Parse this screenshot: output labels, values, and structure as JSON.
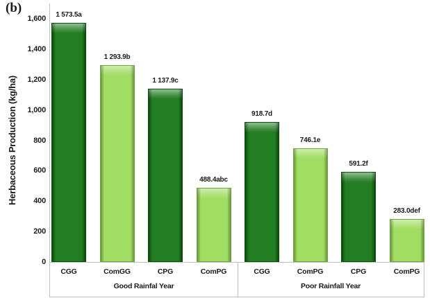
{
  "figure_label": "(b)",
  "chart_data": {
    "type": "bar",
    "title": "",
    "xlabel": "",
    "ylabel": "Herbaceous Production (kg/ha)",
    "ylim": [
      0,
      1600
    ],
    "grid": false,
    "legend": false,
    "y_ticks": [
      {
        "value": 0,
        "label": "0"
      },
      {
        "value": 200,
        "label": "200"
      },
      {
        "value": 400,
        "label": "400"
      },
      {
        "value": 600,
        "label": "600"
      },
      {
        "value": 800,
        "label": "800"
      },
      {
        "value": 1000,
        "label": "1,000"
      },
      {
        "value": 1200,
        "label": "1,200"
      },
      {
        "value": 1400,
        "label": "1,400"
      },
      {
        "value": 1600,
        "label": "1,600"
      }
    ],
    "groups": [
      {
        "label": "Good Rainfal Year",
        "bars": [
          {
            "category": "CGG",
            "value": 1573.5,
            "data_label": "1 573.5a",
            "color": "dark"
          },
          {
            "category": "ComGG",
            "value": 1293.9,
            "data_label": "1 293.9b",
            "color": "light"
          },
          {
            "category": "CPG",
            "value": 1137.9,
            "data_label": "1 137.9c",
            "color": "dark"
          },
          {
            "category": "ComPG",
            "value": 488.4,
            "data_label": "488.4abc",
            "color": "light"
          }
        ]
      },
      {
        "label": "Poor Rainfall Year",
        "bars": [
          {
            "category": "CGG",
            "value": 918.7,
            "data_label": "918.7d",
            "color": "dark"
          },
          {
            "category": "ComPG",
            "value": 746.1,
            "data_label": "746.1e",
            "color": "light"
          },
          {
            "category": "CPG",
            "value": 591.2,
            "data_label": "591.2f",
            "color": "dark"
          },
          {
            "category": "ComPG",
            "value": 283.0,
            "data_label": "283.0def",
            "color": "light"
          }
        ]
      }
    ],
    "colors": {
      "dark_fill": "#0a6e0a",
      "dark_border": "#0a4d0a",
      "light_fill": "#97d951",
      "light_border": "#6ea43e"
    }
  }
}
